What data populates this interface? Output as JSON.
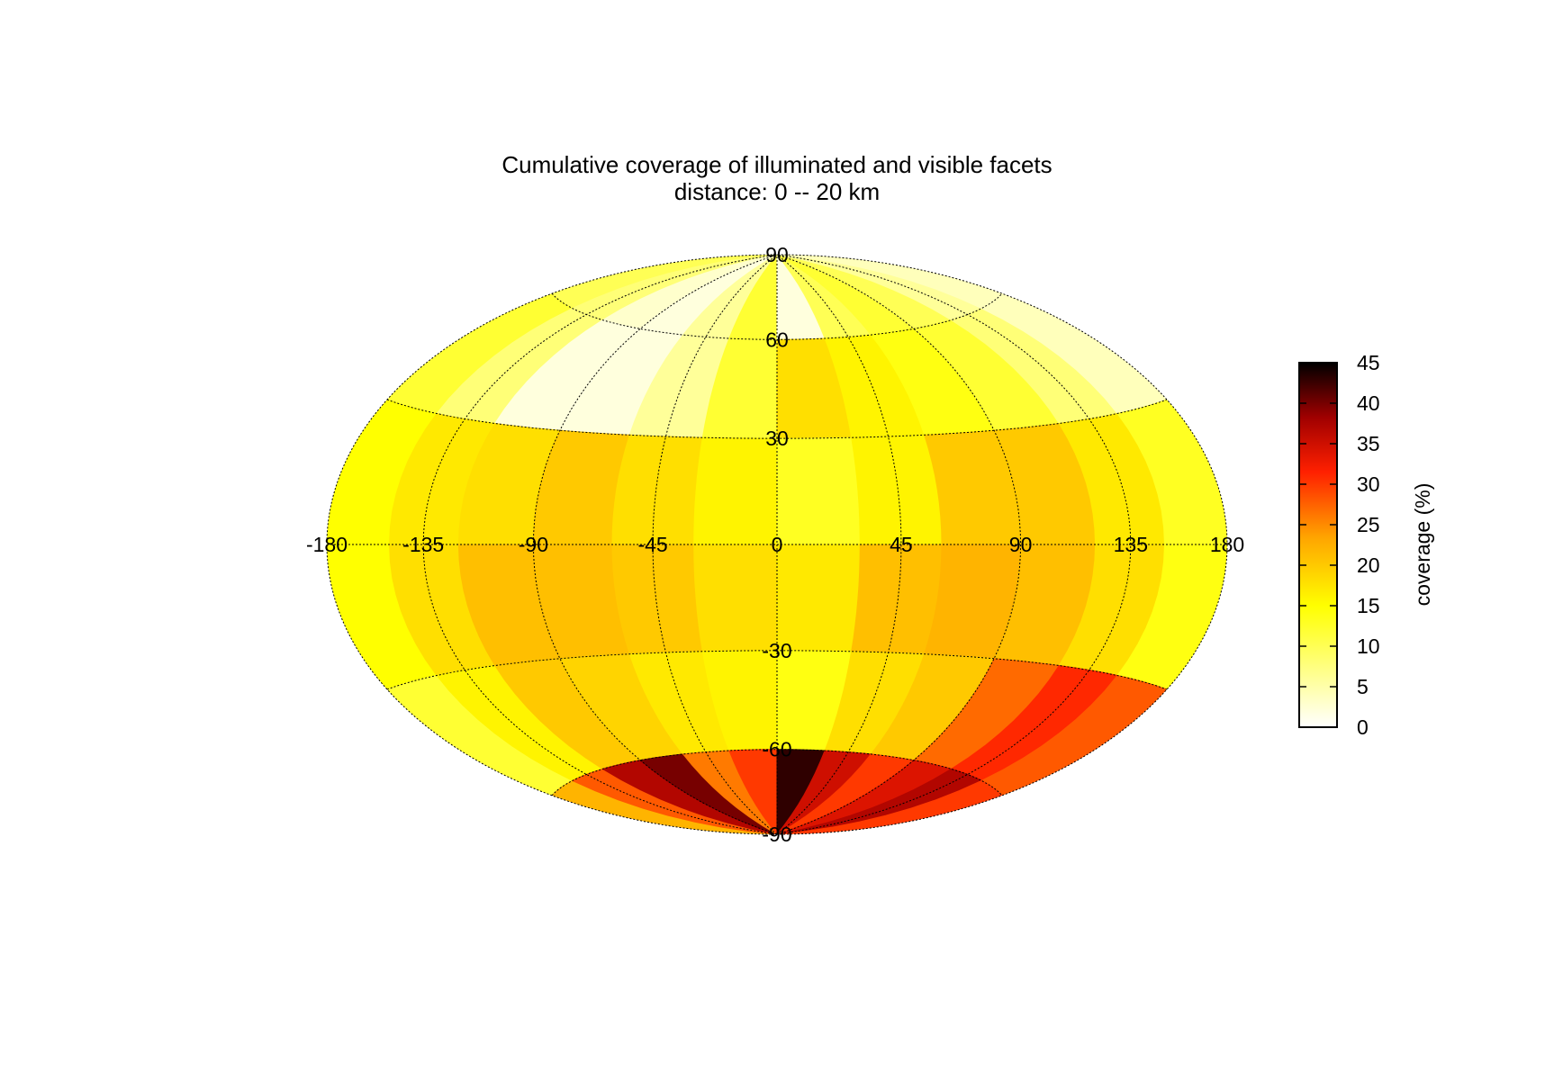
{
  "chart_data": {
    "type": "heatmap",
    "projection": "hammer-aitoff",
    "title": "Cumulative coverage of illuminated and visible facets",
    "subtitle": "distance:  0 -- 20 km",
    "lon_ticks": [
      "-180",
      "-135",
      "-90",
      "-45",
      "0",
      "45",
      "90",
      "135",
      "180"
    ],
    "lat_ticks": [
      "90",
      "60",
      "30",
      "-30",
      "-60",
      "-90"
    ],
    "lon_range": [
      -180,
      180
    ],
    "lat_range": [
      -90,
      90
    ],
    "grid": true,
    "colorbar": {
      "label": "coverage (%)",
      "range": [
        0,
        45
      ],
      "ticks": [
        "0",
        "5",
        "10",
        "15",
        "20",
        "25",
        "30",
        "35",
        "40",
        "45"
      ],
      "colormap": "hot (white-yellow-orange-red-black)"
    },
    "lat_bands": [
      75,
      45,
      15,
      -15,
      -45,
      -75
    ],
    "lon_bins": [
      -165,
      -135,
      -105,
      -75,
      -45,
      -15,
      15,
      45,
      75,
      105,
      135,
      165
    ],
    "values": [
      [
        10,
        8,
        3,
        2,
        6,
        12,
        2,
        10,
        12,
        10,
        6,
        4
      ],
      [
        12,
        8,
        2,
        2,
        6,
        12,
        18,
        16,
        14,
        12,
        8,
        4
      ],
      [
        15,
        17,
        18,
        20,
        18,
        16,
        13,
        16,
        20,
        20,
        17,
        13
      ],
      [
        15,
        18,
        21,
        21,
        20,
        18,
        17,
        21,
        22,
        21,
        18,
        14
      ],
      [
        12,
        16,
        20,
        19,
        17,
        16,
        14,
        18,
        20,
        27,
        31,
        28
      ],
      [
        22,
        28,
        37,
        40,
        26,
        30,
        43,
        35,
        30,
        34,
        37,
        30
      ]
    ]
  }
}
